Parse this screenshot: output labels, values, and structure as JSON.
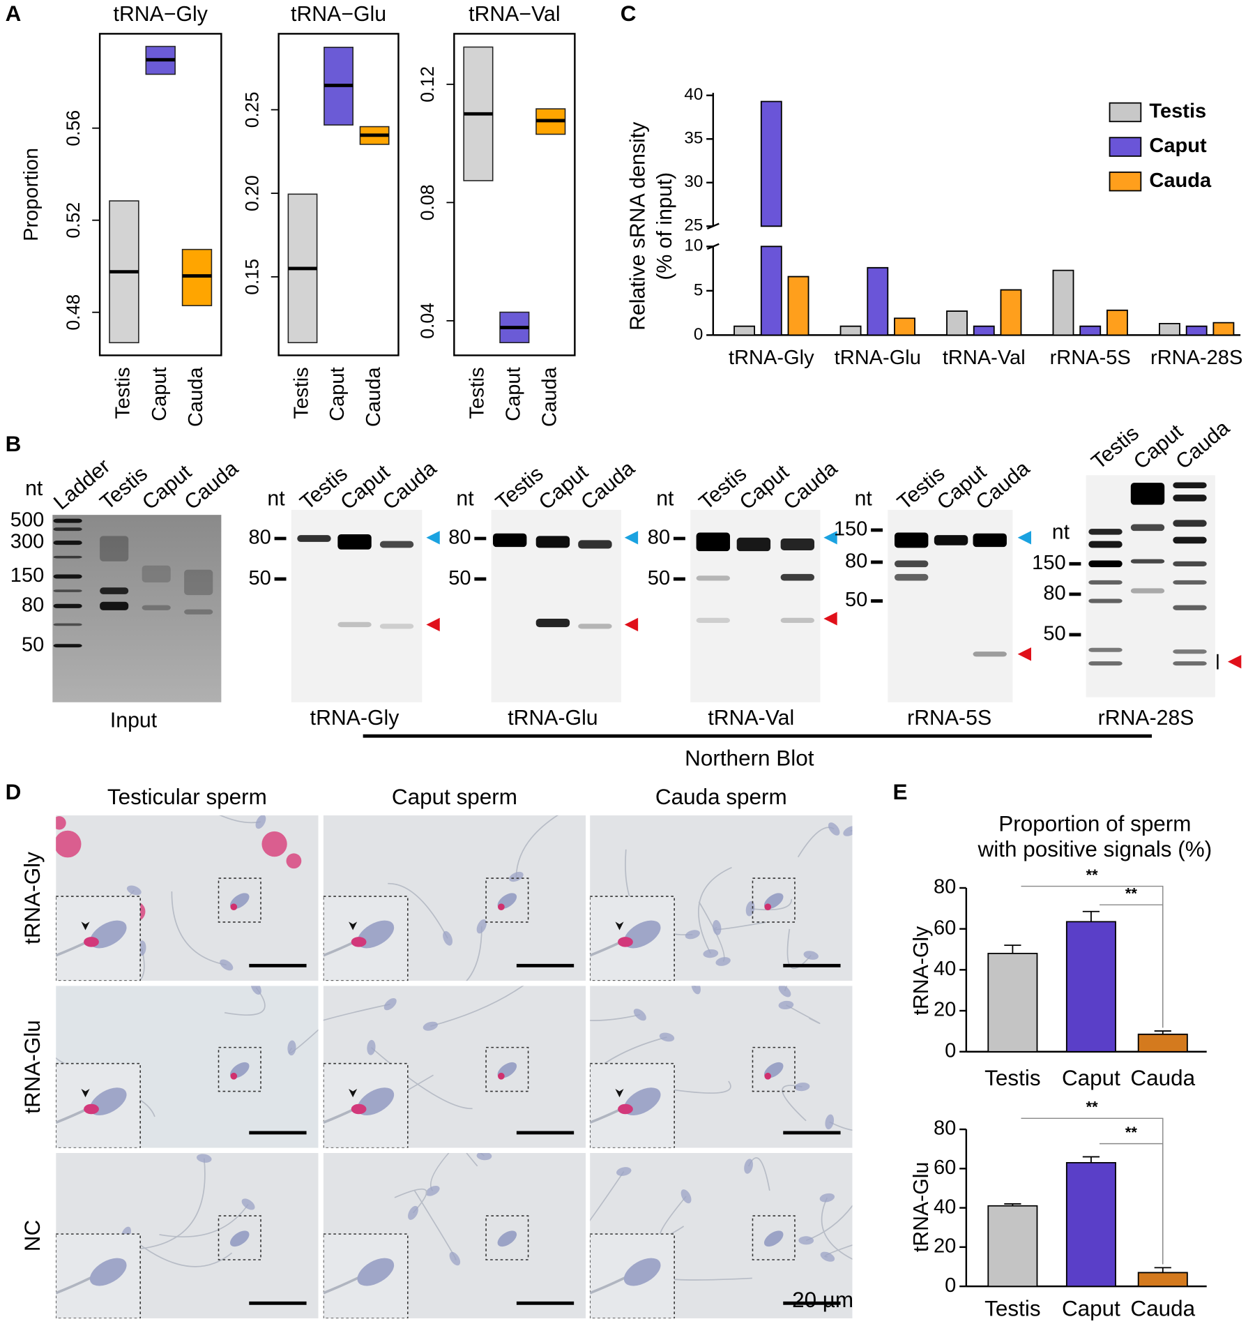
{
  "panel_labels": [
    "A",
    "B",
    "C",
    "D",
    "E"
  ],
  "chart_data": [
    {
      "type": "range",
      "title": "tRNA−Gly",
      "y_label": "Proportion",
      "categories": [
        "Testis",
        "Caput",
        "Cauda"
      ],
      "colors": [
        "#d3d3d3",
        "#6b5bd6",
        "#ffa500"
      ],
      "low": [
        0.4668,
        0.5834,
        0.4829
      ],
      "high": [
        0.5284,
        0.5955,
        0.5073
      ],
      "median": [
        0.4976,
        0.5897,
        0.4958
      ],
      "ylim": [
        0.4613,
        0.601
      ],
      "yticks": [
        0.48,
        0.52,
        0.56
      ]
    },
    {
      "type": "range",
      "title": "tRNA−Glu",
      "categories": [
        "Testis",
        "Caput",
        "Cauda"
      ],
      "colors": [
        "#d3d3d3",
        "#6b5bd6",
        "#ffa500"
      ],
      "low": [
        0.1106,
        0.2409,
        0.2293
      ],
      "high": [
        0.1995,
        0.2874,
        0.2399
      ],
      "median": [
        0.155,
        0.2646,
        0.2348
      ],
      "ylim": [
        0.103,
        0.2955
      ],
      "yticks": [
        0.15,
        {
          "value": 0.2,
          "label": "0.20"
        },
        0.25
      ]
    },
    {
      "type": "range",
      "title": "tRNA−Val",
      "categories": [
        "Testis",
        "Caput",
        "Cauda"
      ],
      "colors": [
        "#d3d3d3",
        "#6b5bd6",
        "#ffa500"
      ],
      "low": [
        0.0874,
        0.0326,
        0.1031
      ],
      "high": [
        0.1326,
        0.0429,
        0.1117
      ],
      "median": [
        0.11,
        0.0377,
        0.1077
      ],
      "ylim": [
        0.0283,
        0.1371
      ],
      "yticks": [
        0.04,
        0.08,
        0.12
      ]
    },
    {
      "type": "bar",
      "y_label": "Relative sRNA density",
      "y_label_2": "(% of input)",
      "categories": [
        "tRNA-Gly",
        "tRNA-Glu",
        "tRNA-Val",
        "rRNA-5S",
        "rRNA-28S"
      ],
      "series": [
        {
          "name": "Testis",
          "color": "#c8c8c8",
          "values": [
            1.0,
            1.0,
            2.7,
            7.3,
            1.3
          ]
        },
        {
          "name": "Caput",
          "color": "#6a55d8",
          "values": [
            39.3,
            7.6,
            1.0,
            1.0,
            1.0
          ]
        },
        {
          "name": "Cauda",
          "color": "#ff9f1c",
          "values": [
            6.6,
            1.9,
            5.1,
            2.8,
            1.4
          ]
        }
      ],
      "ylim": [
        0,
        40
      ],
      "axis_break": [
        10,
        25
      ],
      "yticks": [
        0,
        5,
        10,
        25,
        30,
        35,
        40
      ],
      "legend": "top-right"
    },
    {
      "type": "bar",
      "title": "Proportion of sperm",
      "subtitle": "with positive signals (%)",
      "y_label": "tRNA-Gly",
      "categories": [
        "Testis",
        "Caput",
        "Cauda"
      ],
      "colors": [
        "#c4c4c4",
        "#5a3fc8",
        "#d47a1e"
      ],
      "values": [
        48,
        63.5,
        8.5
      ],
      "errors": [
        4,
        5,
        1.6
      ],
      "ylim": [
        0,
        80
      ],
      "yticks": [
        0,
        20,
        40,
        60,
        80
      ],
      "significance": [
        {
          "pair": [
            "Testis",
            "Cauda"
          ],
          "label": "**"
        },
        {
          "pair": [
            "Caput",
            "Cauda"
          ],
          "label": "**"
        }
      ]
    },
    {
      "type": "bar",
      "y_label": "tRNA-Glu",
      "categories": [
        "Testis",
        "Caput",
        "Cauda"
      ],
      "colors": [
        "#c4c4c4",
        "#5a3fc8",
        "#d47a1e"
      ],
      "values": [
        41,
        63,
        7
      ],
      "errors": [
        1,
        3,
        2.5
      ],
      "ylim": [
        0,
        80
      ],
      "yticks": [
        0,
        20,
        40,
        60,
        80
      ],
      "significance": [
        {
          "pair": [
            "Testis",
            "Cauda"
          ],
          "label": "**"
        },
        {
          "pair": [
            "Caput",
            "Cauda"
          ],
          "label": "**"
        }
      ]
    }
  ],
  "blots": [
    {
      "lanes": [
        "Ladder",
        "Testis",
        "Caput",
        "Cauda"
      ],
      "unit": "nt",
      "markers": [
        500,
        300,
        150,
        80,
        50
      ],
      "caption": "Input"
    },
    {
      "lanes": [
        "Testis",
        "Caput",
        "Cauda"
      ],
      "unit": "nt",
      "markers": [
        80,
        50
      ],
      "caption": "tRNA-Gly"
    },
    {
      "lanes": [
        "Testis",
        "Caput",
        "Cauda"
      ],
      "unit": "nt",
      "markers": [
        80,
        50
      ],
      "caption": "tRNA-Glu"
    },
    {
      "lanes": [
        "Testis",
        "Caput",
        "Cauda"
      ],
      "unit": "nt",
      "markers": [
        80,
        50
      ],
      "caption": "tRNA-Val"
    },
    {
      "lanes": [
        "Testis",
        "Caput",
        "Cauda"
      ],
      "unit": "nt",
      "markers": [
        150,
        80,
        50
      ],
      "caption": "rRNA-5S"
    },
    {
      "lanes": [
        "Testis",
        "Caput",
        "Cauda"
      ],
      "unit": "nt",
      "markers": [
        150,
        80,
        50
      ],
      "caption": "rRNA-28S"
    }
  ],
  "northern_label": "Northern Blot",
  "micrographs": {
    "columns": [
      "Testicular sperm",
      "Caput sperm",
      "Cauda sperm"
    ],
    "rows": [
      "tRNA-Gly",
      "tRNA-Glu",
      "NC"
    ],
    "scale_bar": "20 µm"
  }
}
